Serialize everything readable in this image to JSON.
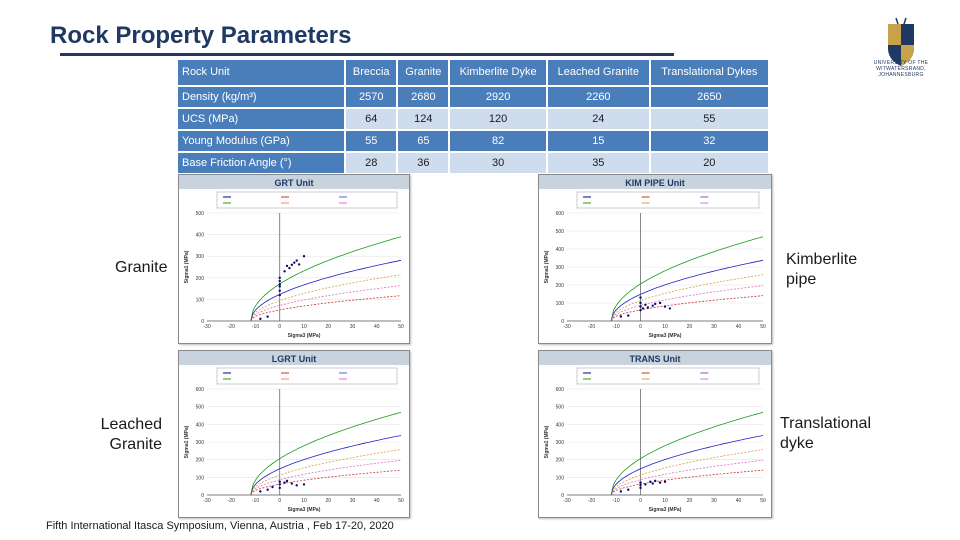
{
  "title": "Rock Property Parameters",
  "logo_text": "UNIVERSITY OF THE WITWATERSRAND, JOHANNESBURG",
  "table": {
    "headers": [
      "Rock Unit",
      "Breccia",
      "Granite",
      "Kimberlite Dyke",
      "Leached Granite",
      "Translational Dykes"
    ],
    "rows": [
      {
        "label": "Density (kg/m³)",
        "values": [
          "2570",
          "2680",
          "2920",
          "2260",
          "2650"
        ]
      },
      {
        "label": "UCS (MPa)",
        "values": [
          "64",
          "124",
          "120",
          "24",
          "55"
        ]
      },
      {
        "label": "Young Modulus (GPa)",
        "values": [
          "55",
          "65",
          "82",
          "15",
          "32"
        ]
      },
      {
        "label": "Base Friction Angle (°)",
        "values": [
          "28",
          "36",
          "30",
          "35",
          "20"
        ]
      }
    ]
  },
  "labels": {
    "granite": "Granite",
    "kimberlite": "Kimberlite pipe",
    "leached": "Leached Granite",
    "translational": "Translational dyke"
  },
  "footer": "Fifth International Itasca Symposium, Vienna, Austria , Feb 17-20, 2020",
  "colors": {
    "navy": "#1f3864",
    "header_blue": "#4a7ebb",
    "light_blue": "#cfdcee"
  },
  "chart_data": [
    {
      "type": "scatter",
      "title": "GRT Unit",
      "xlabel": "Sigma3 (MPa)",
      "ylabel": "Sigma1 (MPa)",
      "xticks": [
        "-30",
        "-20",
        "-10",
        "0",
        "10",
        "20",
        "30",
        "40",
        "50"
      ],
      "yticks": [
        "0",
        "100",
        "200",
        "300",
        "400",
        "500"
      ],
      "points": [
        [
          0,
          120
        ],
        [
          0,
          140
        ],
        [
          0,
          160
        ],
        [
          0,
          170
        ],
        [
          0,
          185
        ],
        [
          0,
          200
        ],
        [
          2,
          230
        ],
        [
          3,
          255
        ],
        [
          4,
          245
        ],
        [
          5,
          260
        ],
        [
          6,
          270
        ],
        [
          7,
          280
        ],
        [
          8,
          262
        ],
        [
          10,
          300
        ],
        [
          -5,
          20
        ],
        [
          -8,
          10
        ]
      ]
    },
    {
      "type": "scatter",
      "title": "KIM PIPE Unit",
      "xlabel": "Sigma3 (MPa)",
      "ylabel": "Sigma1 (MPa)",
      "xticks": [
        "-30",
        "-20",
        "-10",
        "0",
        "10",
        "20",
        "30",
        "40",
        "50"
      ],
      "yticks": [
        "0",
        "100",
        "200",
        "300",
        "400",
        "500",
        "600"
      ],
      "points": [
        [
          0,
          60
        ],
        [
          0,
          80
        ],
        [
          0,
          100
        ],
        [
          0,
          130
        ],
        [
          1,
          70
        ],
        [
          2,
          90
        ],
        [
          3,
          75
        ],
        [
          5,
          85
        ],
        [
          6,
          95
        ],
        [
          8,
          100
        ],
        [
          10,
          80
        ],
        [
          12,
          70
        ],
        [
          -5,
          30
        ],
        [
          -8,
          25
        ]
      ]
    },
    {
      "type": "scatter",
      "title": "LGRT Unit",
      "xlabel": "Sigma3 (MPa)",
      "ylabel": "Sigma1 (MPa)",
      "xticks": [
        "-30",
        "-20",
        "-10",
        "0",
        "10",
        "20",
        "30",
        "40",
        "50"
      ],
      "yticks": [
        "0",
        "100",
        "200",
        "300",
        "400",
        "500",
        "600"
      ],
      "points": [
        [
          0,
          40
        ],
        [
          0,
          60
        ],
        [
          0,
          75
        ],
        [
          2,
          70
        ],
        [
          3,
          80
        ],
        [
          5,
          65
        ],
        [
          7,
          55
        ],
        [
          10,
          60
        ],
        [
          -5,
          30
        ],
        [
          -3,
          45
        ],
        [
          -8,
          20
        ]
      ]
    },
    {
      "type": "scatter",
      "title": "TRANS Unit",
      "xlabel": "Sigma3 (MPa)",
      "ylabel": "Sigma1 (MPa)",
      "xticks": [
        "-30",
        "-20",
        "-10",
        "0",
        "10",
        "20",
        "30",
        "40",
        "50"
      ],
      "yticks": [
        "0",
        "100",
        "200",
        "300",
        "400",
        "500",
        "600"
      ],
      "points": [
        [
          0,
          40
        ],
        [
          0,
          55
        ],
        [
          0,
          70
        ],
        [
          2,
          60
        ],
        [
          4,
          75
        ],
        [
          5,
          65
        ],
        [
          6,
          80
        ],
        [
          8,
          70
        ],
        [
          10,
          75
        ],
        [
          -5,
          30
        ],
        [
          -8,
          20
        ]
      ]
    }
  ]
}
